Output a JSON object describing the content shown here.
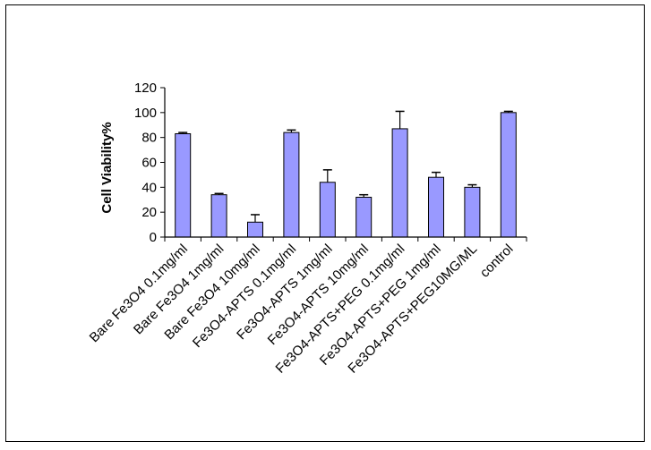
{
  "chart_data": {
    "type": "bar",
    "title": "",
    "xlabel": "",
    "ylabel": "Cell Viability%",
    "ylim": [
      0,
      120
    ],
    "yticks": [
      0,
      20,
      40,
      60,
      80,
      100,
      120
    ],
    "ytick_labels": [
      "0",
      "20",
      "40",
      "60",
      "80",
      "100",
      "120"
    ],
    "grid": false,
    "legend": "none",
    "bar_color": "#9999ff",
    "categories": [
      "Bare Fe3O4 0.1mg/ml",
      "Bare Fe3O4 1mg/ml",
      "Bare Fe3O4 10mg/ml",
      "Fe3O4-APTS 0.1mg/ml",
      "Fe3O4-APTS 1mg/ml",
      "Fe3O4-APTS 10mg/ml",
      "Fe3O4-APTS+PEG 0.1mg/ml",
      "Fe3O4-APTS+PEG 1mg/ml",
      "Fe3O4-APTS+PEG10MG/ML",
      "control"
    ],
    "values": [
      83,
      34,
      12,
      84,
      44,
      32,
      87,
      48,
      40,
      100
    ],
    "errors": [
      1,
      1,
      6,
      2,
      10,
      2,
      14,
      4,
      2,
      1
    ]
  }
}
